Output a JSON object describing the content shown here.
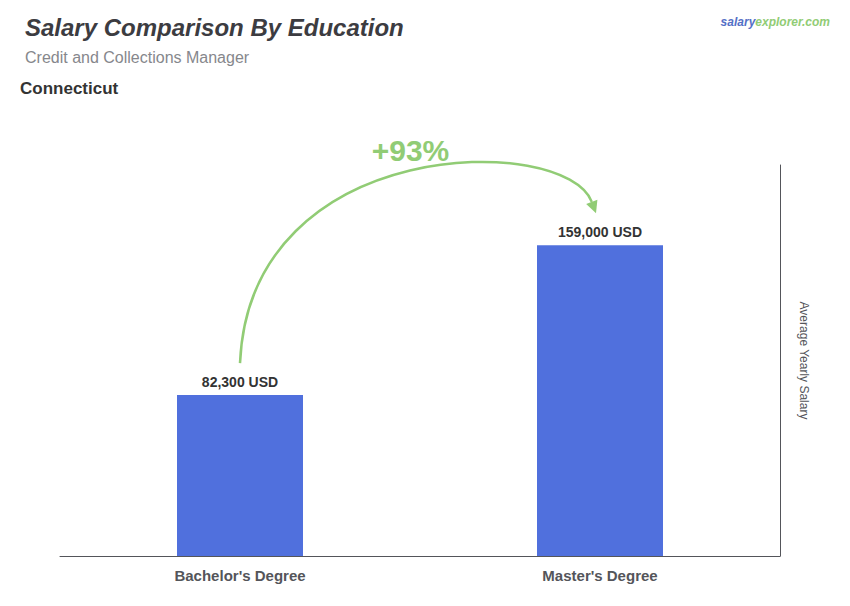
{
  "chart_data": {
    "type": "bar",
    "title": "Salary Comparison By Education",
    "subtitle": "Credit and Collections Manager",
    "ylabel": "Average Yearly Salary",
    "categories": [
      "Bachelor's Degree",
      "Master's Degree"
    ],
    "values": [
      82300,
      159000
    ],
    "value_labels": [
      "82,300 USD",
      "159,000 USD"
    ],
    "data_labels": true,
    "ylim": [
      0,
      200000
    ],
    "grid": false,
    "tick_labels": "x",
    "annotations": [
      "Connecticut",
      "salary",
      "explorer.com",
      "+93%"
    ]
  }
}
